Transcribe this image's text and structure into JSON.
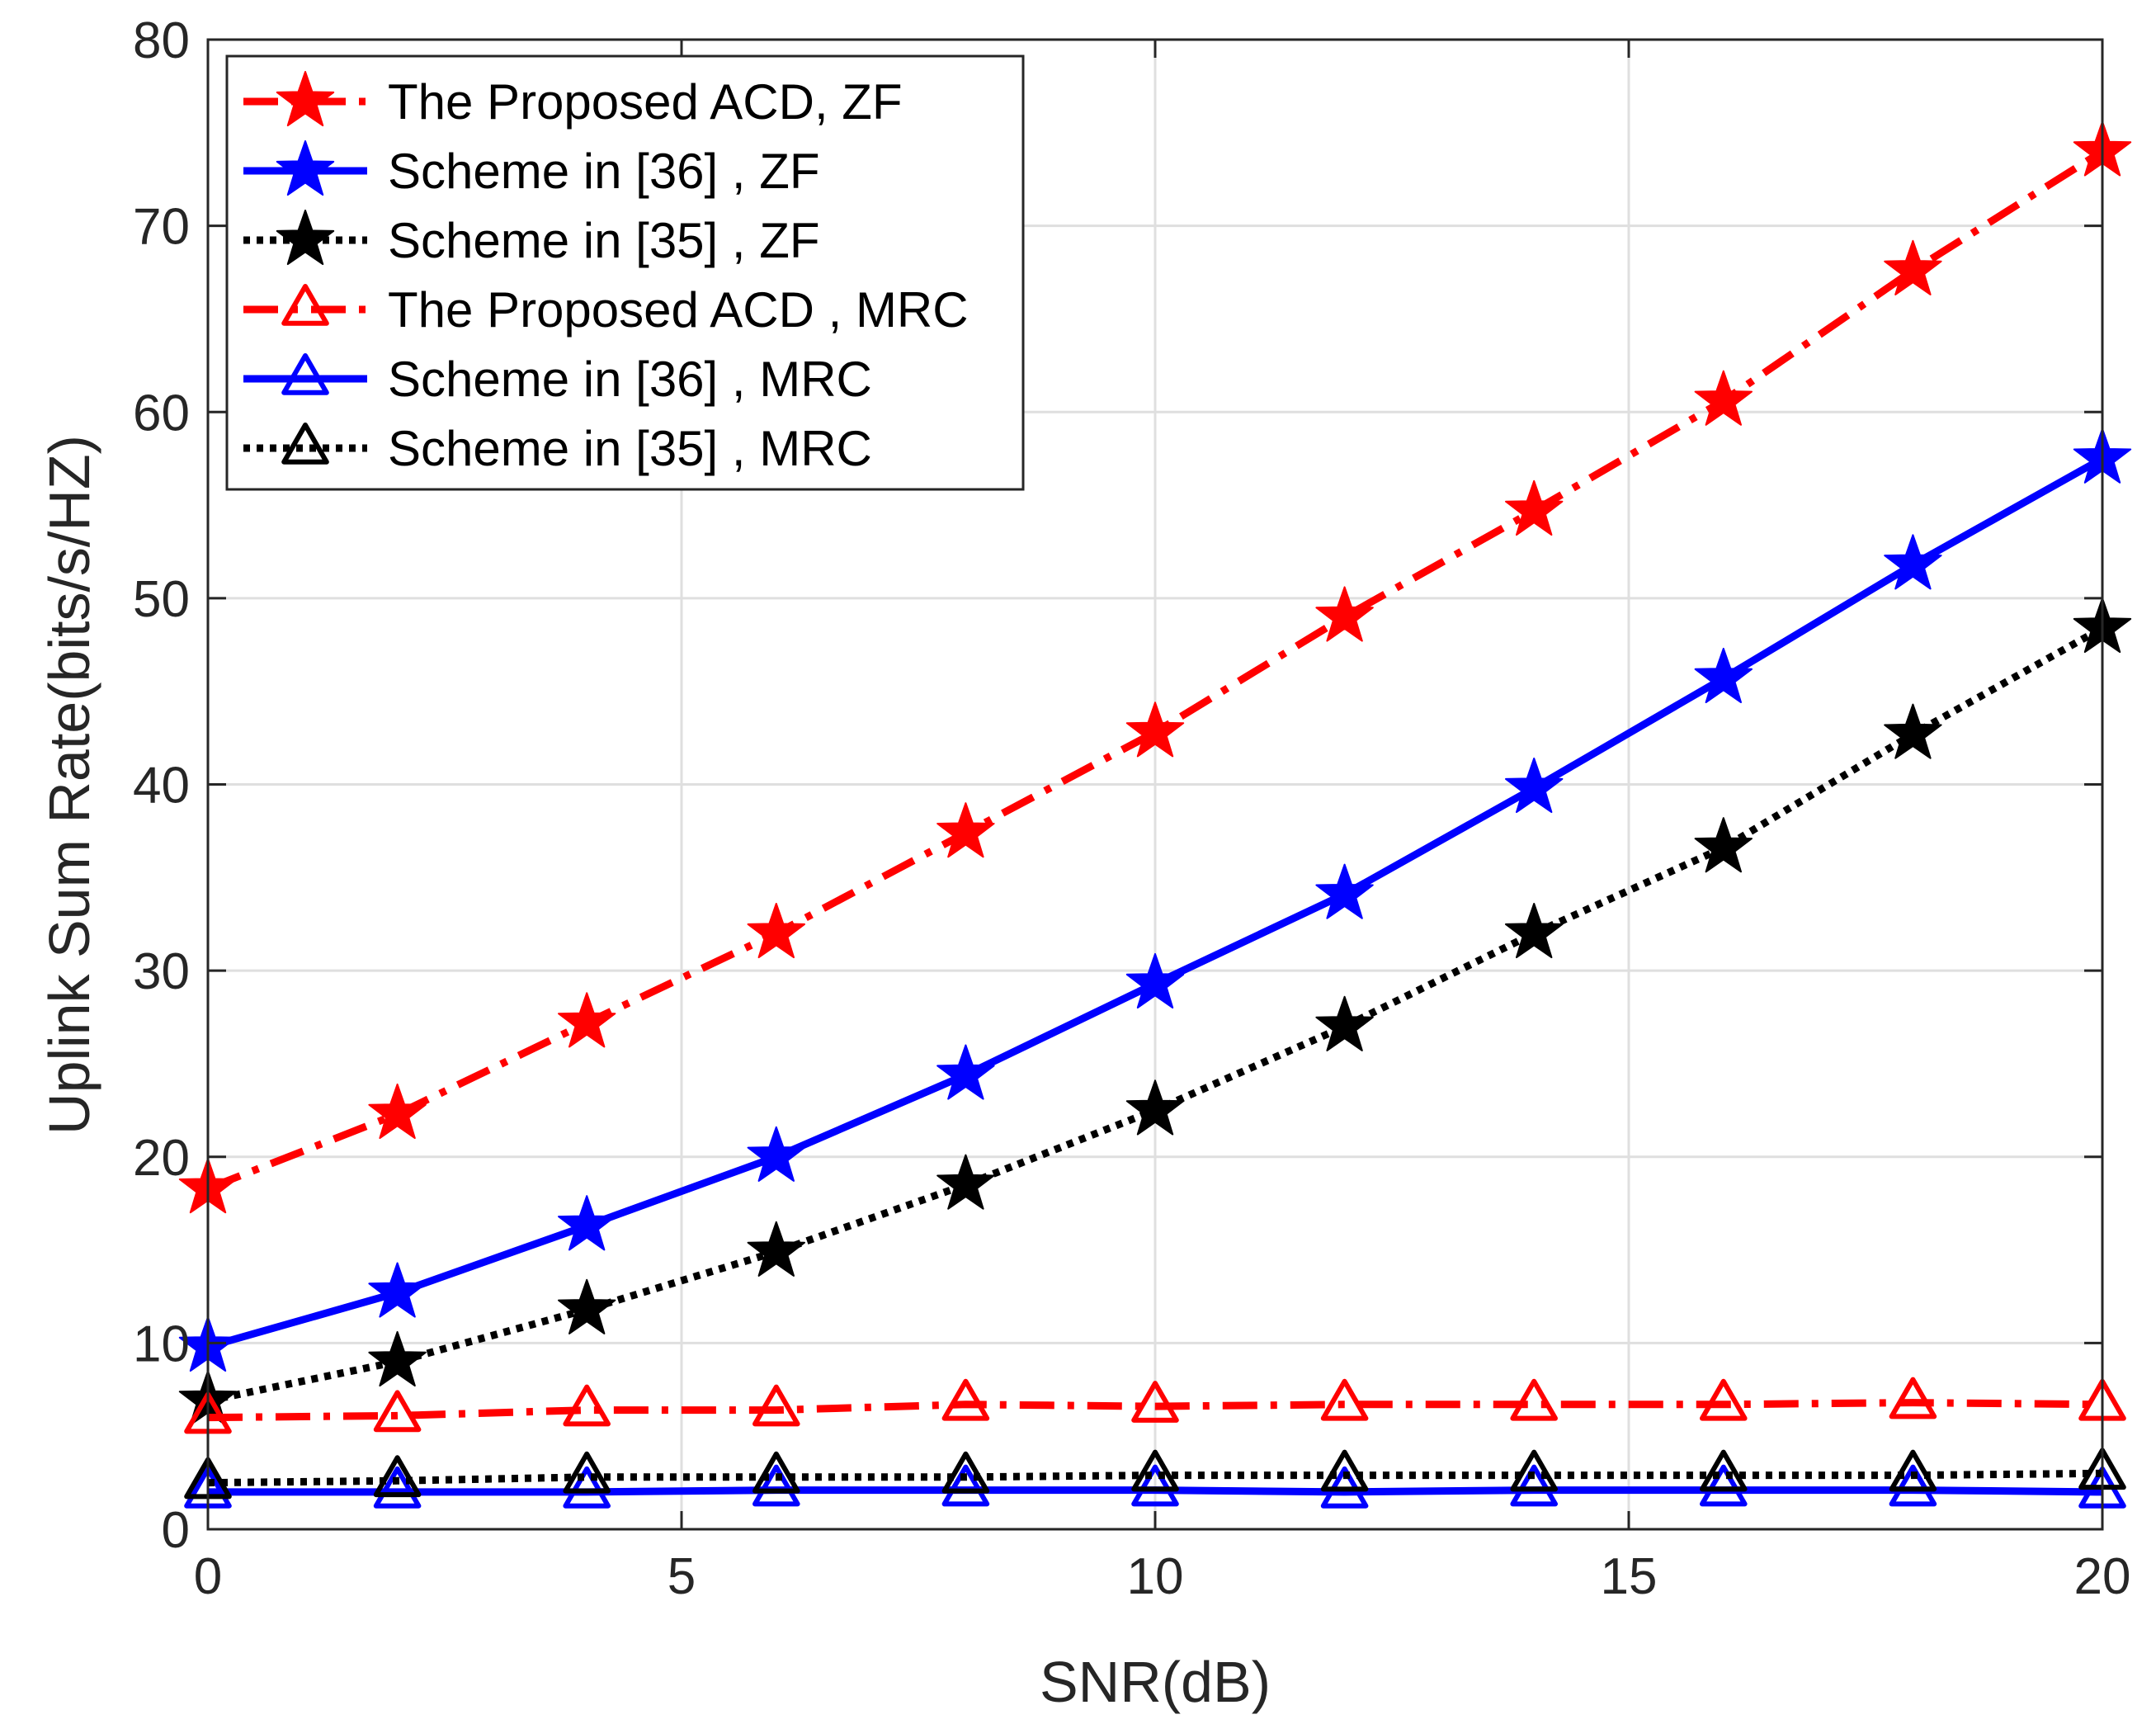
{
  "chart_data": {
    "type": "line",
    "xlabel": "SNR(dB)",
    "ylabel": "Uplink Sum Rate(bits/s/HZ)",
    "xlim": [
      0,
      20
    ],
    "ylim": [
      0,
      80
    ],
    "xticks": [
      0,
      5,
      10,
      15,
      20
    ],
    "yticks": [
      0,
      10,
      20,
      30,
      40,
      50,
      60,
      70,
      80
    ],
    "grid": true,
    "legend_position": "top-left",
    "x": [
      0,
      2,
      4,
      6,
      8,
      10,
      12,
      14,
      16,
      18,
      20
    ],
    "series": [
      {
        "name": "The Proposed ACD, ZF",
        "color": "#ff0000",
        "dash": "dashdot",
        "marker": "star",
        "values": [
          18.3,
          22.3,
          27.2,
          32.0,
          37.4,
          42.8,
          49.0,
          54.7,
          60.6,
          67.6,
          74.0
        ]
      },
      {
        "name": "Scheme in [36] , ZF",
        "color": "#0000ff",
        "dash": "solid",
        "marker": "star",
        "values": [
          9.8,
          12.7,
          16.3,
          20.0,
          24.4,
          29.3,
          34.1,
          39.8,
          45.7,
          51.8,
          57.5
        ]
      },
      {
        "name": "Scheme in [35] , ZF",
        "color": "#000000",
        "dash": "dotted",
        "marker": "star",
        "values": [
          6.9,
          9.0,
          11.8,
          14.9,
          18.5,
          22.5,
          27.0,
          32.0,
          36.6,
          42.7,
          48.4
        ]
      },
      {
        "name": "The Proposed ACD , MRC",
        "color": "#ff0000",
        "dash": "dashdot",
        "marker": "triangle",
        "values": [
          6.0,
          6.1,
          6.4,
          6.4,
          6.7,
          6.6,
          6.7,
          6.7,
          6.7,
          6.8,
          6.7
        ]
      },
      {
        "name": "Scheme in [36] , MRC",
        "color": "#0000ff",
        "dash": "solid",
        "marker": "triangle",
        "values": [
          2.0,
          2.0,
          2.0,
          2.1,
          2.1,
          2.1,
          2.0,
          2.1,
          2.1,
          2.1,
          2.0
        ]
      },
      {
        "name": "Scheme in [35] , MRC",
        "color": "#000000",
        "dash": "dotted",
        "marker": "triangle",
        "values": [
          2.5,
          2.6,
          2.8,
          2.8,
          2.8,
          2.9,
          2.9,
          2.9,
          2.9,
          2.9,
          3.0
        ]
      }
    ]
  }
}
